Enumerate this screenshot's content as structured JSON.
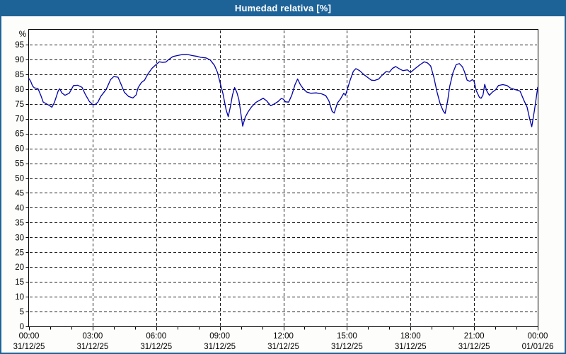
{
  "window": {
    "title": "Humedad relativa [%]"
  },
  "colors": {
    "titlebar": "#1d6398",
    "window_border": "#1d6398",
    "window_bg": "#fdfdfb",
    "plot_bg": "#ffffff",
    "plot_border": "#000000",
    "grid": "#1c1c1c",
    "line": "#0000aa",
    "label": "#000000"
  },
  "chart_data": {
    "type": "line",
    "title": "Humedad relativa [%]",
    "ylabel": "%",
    "xlabel": "",
    "ylim": [
      0,
      100
    ],
    "xlim_hours": [
      0,
      24
    ],
    "grid": "dashed; horizontal every 5%, vertical every 3h",
    "legend_position": "none",
    "y_ticks": [
      0,
      5,
      10,
      15,
      20,
      25,
      30,
      35,
      40,
      45,
      50,
      55,
      60,
      65,
      70,
      75,
      80,
      85,
      90,
      95
    ],
    "y_unit_label": "%",
    "x_minor_tick_every_hours": 1,
    "x_ticks": [
      {
        "hour": 0,
        "time": "00:00",
        "date": "31/12/25"
      },
      {
        "hour": 3,
        "time": "03:00",
        "date": "31/12/25"
      },
      {
        "hour": 6,
        "time": "06:00",
        "date": "31/12/25"
      },
      {
        "hour": 9,
        "time": "09:00",
        "date": "31/12/25"
      },
      {
        "hour": 12,
        "time": "12:00",
        "date": "31/12/25"
      },
      {
        "hour": 15,
        "time": "15:00",
        "date": "31/12/25"
      },
      {
        "hour": 18,
        "time": "18:00",
        "date": "31/12/25"
      },
      {
        "hour": 21,
        "time": "21:00",
        "date": "31/12/25"
      },
      {
        "hour": 24,
        "time": "00:00",
        "date": "01/01/26"
      }
    ],
    "series": [
      {
        "name": "Humedad relativa",
        "unit": "%",
        "points": [
          [
            0,
            83.5
          ],
          [
            0.08,
            82.6
          ],
          [
            0.17,
            81.0
          ],
          [
            0.25,
            80.4
          ],
          [
            0.42,
            80.2
          ],
          [
            0.55,
            78.0
          ],
          [
            0.67,
            75.6
          ],
          [
            0.83,
            75.0
          ],
          [
            0.95,
            74.5
          ],
          [
            1.08,
            73.9
          ],
          [
            1.2,
            75.5
          ],
          [
            1.38,
            79.4
          ],
          [
            1.45,
            80.1
          ],
          [
            1.55,
            78.7
          ],
          [
            1.7,
            77.9
          ],
          [
            1.9,
            78.6
          ],
          [
            2.1,
            81.2
          ],
          [
            2.3,
            81.3
          ],
          [
            2.5,
            80.6
          ],
          [
            2.65,
            78.3
          ],
          [
            2.85,
            75.8
          ],
          [
            3.0,
            74.8
          ],
          [
            3.12,
            74.8
          ],
          [
            3.25,
            75.6
          ],
          [
            3.38,
            77.5
          ],
          [
            3.5,
            78.6
          ],
          [
            3.65,
            80.0
          ],
          [
            3.85,
            83.2
          ],
          [
            4.0,
            84.2
          ],
          [
            4.2,
            84.0
          ],
          [
            4.35,
            81.5
          ],
          [
            4.5,
            78.9
          ],
          [
            4.7,
            77.5
          ],
          [
            4.9,
            77.0
          ],
          [
            5.05,
            78.0
          ],
          [
            5.15,
            80.5
          ],
          [
            5.3,
            82.2
          ],
          [
            5.45,
            83.0
          ],
          [
            5.6,
            85.0
          ],
          [
            5.8,
            87.0
          ],
          [
            6.0,
            88.3
          ],
          [
            6.15,
            89.2
          ],
          [
            6.3,
            89.0
          ],
          [
            6.45,
            89.1
          ],
          [
            6.6,
            90.0
          ],
          [
            6.8,
            91.0
          ],
          [
            7.0,
            91.3
          ],
          [
            7.2,
            91.6
          ],
          [
            7.45,
            91.7
          ],
          [
            7.7,
            91.3
          ],
          [
            7.95,
            91.0
          ],
          [
            8.1,
            90.7
          ],
          [
            8.35,
            90.5
          ],
          [
            8.55,
            89.8
          ],
          [
            8.75,
            88.0
          ],
          [
            8.9,
            85.5
          ],
          [
            9.0,
            82.6
          ],
          [
            9.15,
            78.5
          ],
          [
            9.3,
            73.0
          ],
          [
            9.4,
            70.7
          ],
          [
            9.5,
            74.0
          ],
          [
            9.6,
            78.0
          ],
          [
            9.7,
            80.5
          ],
          [
            9.8,
            79.0
          ],
          [
            9.9,
            76.5
          ],
          [
            10.0,
            71.5
          ],
          [
            10.08,
            67.5
          ],
          [
            10.2,
            70.5
          ],
          [
            10.35,
            72.5
          ],
          [
            10.5,
            74.0
          ],
          [
            10.7,
            75.5
          ],
          [
            10.9,
            76.3
          ],
          [
            11.05,
            76.9
          ],
          [
            11.2,
            76.1
          ],
          [
            11.4,
            74.4
          ],
          [
            11.55,
            74.9
          ],
          [
            11.75,
            75.8
          ],
          [
            11.9,
            76.8
          ],
          [
            12.0,
            76.6
          ],
          [
            12.1,
            75.7
          ],
          [
            12.25,
            75.6
          ],
          [
            12.4,
            78.0
          ],
          [
            12.55,
            81.5
          ],
          [
            12.67,
            83.4
          ],
          [
            12.8,
            81.5
          ],
          [
            12.95,
            80.0
          ],
          [
            13.1,
            79.0
          ],
          [
            13.3,
            78.6
          ],
          [
            13.55,
            78.7
          ],
          [
            13.8,
            78.4
          ],
          [
            14.0,
            77.8
          ],
          [
            14.15,
            76.0
          ],
          [
            14.3,
            72.5
          ],
          [
            14.4,
            71.9
          ],
          [
            14.55,
            75.3
          ],
          [
            14.7,
            76.7
          ],
          [
            14.85,
            78.6
          ],
          [
            14.93,
            77.9
          ],
          [
            15.0,
            79.5
          ],
          [
            15.15,
            83.0
          ],
          [
            15.3,
            86.0
          ],
          [
            15.42,
            86.9
          ],
          [
            15.6,
            86.2
          ],
          [
            15.8,
            84.9
          ],
          [
            16.0,
            83.8
          ],
          [
            16.15,
            83.0
          ],
          [
            16.3,
            82.9
          ],
          [
            16.5,
            83.4
          ],
          [
            16.65,
            84.6
          ],
          [
            16.85,
            85.9
          ],
          [
            17.0,
            85.7
          ],
          [
            17.15,
            87.0
          ],
          [
            17.3,
            87.6
          ],
          [
            17.5,
            86.7
          ],
          [
            17.65,
            86.2
          ],
          [
            17.85,
            86.5
          ],
          [
            18.0,
            85.6
          ],
          [
            18.2,
            86.8
          ],
          [
            18.45,
            88.2
          ],
          [
            18.65,
            89.2
          ],
          [
            18.8,
            88.8
          ],
          [
            18.95,
            87.8
          ],
          [
            19.1,
            84.0
          ],
          [
            19.25,
            79.0
          ],
          [
            19.4,
            75.0
          ],
          [
            19.55,
            72.5
          ],
          [
            19.63,
            71.8
          ],
          [
            19.75,
            76.0
          ],
          [
            19.85,
            81.0
          ],
          [
            20.0,
            85.5
          ],
          [
            20.15,
            88.2
          ],
          [
            20.3,
            88.6
          ],
          [
            20.45,
            87.5
          ],
          [
            20.55,
            85.8
          ],
          [
            20.67,
            83.0
          ],
          [
            20.8,
            82.6
          ],
          [
            20.92,
            83.2
          ],
          [
            21.0,
            82.6
          ],
          [
            21.1,
            79.5
          ],
          [
            21.25,
            77.2
          ],
          [
            21.33,
            76.9
          ],
          [
            21.42,
            78.0
          ],
          [
            21.5,
            81.6
          ],
          [
            21.6,
            79.3
          ],
          [
            21.72,
            77.9
          ],
          [
            21.85,
            78.9
          ],
          [
            22.0,
            79.7
          ],
          [
            22.15,
            81.2
          ],
          [
            22.35,
            81.5
          ],
          [
            22.55,
            81.2
          ],
          [
            22.7,
            80.4
          ],
          [
            22.9,
            79.9
          ],
          [
            23.05,
            79.6
          ],
          [
            23.17,
            79.3
          ],
          [
            23.35,
            76.2
          ],
          [
            23.5,
            73.9
          ],
          [
            23.62,
            70.0
          ],
          [
            23.72,
            67.3
          ],
          [
            23.85,
            73.0
          ],
          [
            23.95,
            78.0
          ],
          [
            24.0,
            80.6
          ]
        ]
      }
    ]
  }
}
